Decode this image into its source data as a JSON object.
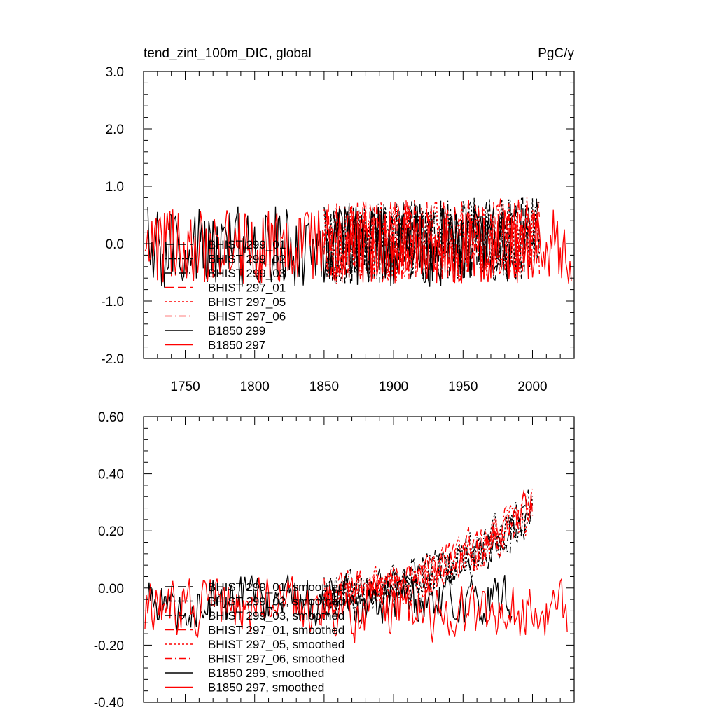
{
  "chart_data": [
    {
      "type": "line",
      "title": "tend_zint_100m_DIC, global",
      "units": "PgC/y",
      "xlim": [
        1720,
        2030
      ],
      "ylim": [
        -2.0,
        3.0
      ],
      "x_ticks": [
        1750,
        1800,
        1850,
        1900,
        1950,
        2000
      ],
      "x_tick_labels": [
        "1750",
        "1800",
        "1850",
        "1900",
        "1950",
        "2000"
      ],
      "y_ticks": [
        -2.0,
        -1.0,
        0.0,
        1.0,
        2.0,
        3.0
      ],
      "y_tick_labels": [
        "-2.0",
        "-1.0",
        "0.0",
        "1.0",
        "2.0",
        "3.0"
      ],
      "grid": false,
      "legend_position": "left-middle",
      "series": [
        {
          "name": "BHIST 299_01",
          "color": "#000000",
          "dash": "long-dash",
          "x_range": [
            1850,
            2005
          ],
          "mean": 0.0,
          "amplitude": 0.55,
          "trend": [
            0.0,
            0.1
          ],
          "seed": 11
        },
        {
          "name": "BHIST 299_02",
          "color": "#000000",
          "dash": "dot",
          "x_range": [
            1850,
            2005
          ],
          "mean": 0.0,
          "amplitude": 0.55,
          "trend": [
            0.0,
            0.12
          ],
          "seed": 12
        },
        {
          "name": "BHIST 299_03",
          "color": "#000000",
          "dash": "dash-dot",
          "x_range": [
            1850,
            2005
          ],
          "mean": 0.0,
          "amplitude": 0.55,
          "trend": [
            0.0,
            0.1
          ],
          "seed": 13
        },
        {
          "name": "BHIST 297_01",
          "color": "#ff0000",
          "dash": "long-dash",
          "x_range": [
            1850,
            2005
          ],
          "mean": 0.0,
          "amplitude": 0.55,
          "trend": [
            0.0,
            0.15
          ],
          "seed": 21
        },
        {
          "name": "BHIST 297_05",
          "color": "#ff0000",
          "dash": "dot",
          "x_range": [
            1850,
            2005
          ],
          "mean": 0.0,
          "amplitude": 0.55,
          "trend": [
            0.0,
            0.15
          ],
          "seed": 22
        },
        {
          "name": "BHIST 297_06",
          "color": "#ff0000",
          "dash": "dash-dot",
          "x_range": [
            1850,
            2005
          ],
          "mean": 0.0,
          "amplitude": 0.55,
          "trend": [
            0.0,
            0.15
          ],
          "seed": 23
        },
        {
          "name": "B1850 299",
          "color": "#000000",
          "dash": "solid",
          "x_range": [
            1723,
            1985
          ],
          "mean": -0.05,
          "amplitude": 0.55,
          "trend": [
            0.0,
            0.0
          ],
          "seed": 31
        },
        {
          "name": "B1850 297",
          "color": "#ff0000",
          "dash": "solid",
          "x_range": [
            1721,
            2028
          ],
          "mean": -0.05,
          "amplitude": 0.5,
          "trend": [
            0.0,
            0.0
          ],
          "seed": 32
        }
      ]
    },
    {
      "type": "line",
      "xlim": [
        1720,
        2030
      ],
      "ylim": [
        -0.4,
        0.6
      ],
      "x_ticks": [
        1750,
        1800,
        1850,
        1900,
        1950,
        2000
      ],
      "y_ticks": [
        -0.4,
        -0.2,
        0.0,
        0.2,
        0.4,
        0.6
      ],
      "y_tick_labels": [
        "-0.40",
        "-0.20",
        "0.00",
        "0.20",
        "0.40",
        "0.60"
      ],
      "grid": false,
      "legend_position": "left-middle",
      "series": [
        {
          "name": "BHIST 299_01, smoothed",
          "color": "#000000",
          "dash": "long-dash",
          "x_range": [
            1850,
            2000
          ],
          "mean": 0.0,
          "amplitude": 0.06,
          "trend": [
            -0.02,
            0.26
          ],
          "seed": 41
        },
        {
          "name": "BHIST 299_02, smoothed",
          "color": "#000000",
          "dash": "dot",
          "x_range": [
            1850,
            2000
          ],
          "mean": 0.0,
          "amplitude": 0.06,
          "trend": [
            -0.02,
            0.27
          ],
          "seed": 42
        },
        {
          "name": "BHIST 299_03, smoothed",
          "color": "#000000",
          "dash": "dash-dot",
          "x_range": [
            1850,
            2000
          ],
          "mean": 0.0,
          "amplitude": 0.06,
          "trend": [
            -0.02,
            0.26
          ],
          "seed": 43
        },
        {
          "name": "BHIST 297_01, smoothed",
          "color": "#ff0000",
          "dash": "long-dash",
          "x_range": [
            1850,
            2000
          ],
          "mean": 0.0,
          "amplitude": 0.06,
          "trend": [
            -0.02,
            0.28
          ],
          "seed": 51
        },
        {
          "name": "BHIST 297_05, smoothed",
          "color": "#ff0000",
          "dash": "dot",
          "x_range": [
            1850,
            2000
          ],
          "mean": 0.0,
          "amplitude": 0.06,
          "trend": [
            -0.02,
            0.27
          ],
          "seed": 52
        },
        {
          "name": "BHIST 297_06, smoothed",
          "color": "#ff0000",
          "dash": "dash-dot",
          "x_range": [
            1850,
            2000
          ],
          "mean": 0.0,
          "amplitude": 0.06,
          "trend": [
            -0.02,
            0.29
          ],
          "seed": 53
        },
        {
          "name": "B1850 299, smoothed",
          "color": "#000000",
          "dash": "solid",
          "x_range": [
            1723,
            1985
          ],
          "mean": -0.05,
          "amplitude": 0.07,
          "trend": [
            0.0,
            0.0
          ],
          "seed": 61
        },
        {
          "name": "B1850 297, smoothed",
          "color": "#ff0000",
          "dash": "solid",
          "x_range": [
            1721,
            2025
          ],
          "mean": -0.06,
          "amplitude": 0.08,
          "trend": [
            0.0,
            -0.04
          ],
          "seed": 62
        }
      ]
    }
  ]
}
